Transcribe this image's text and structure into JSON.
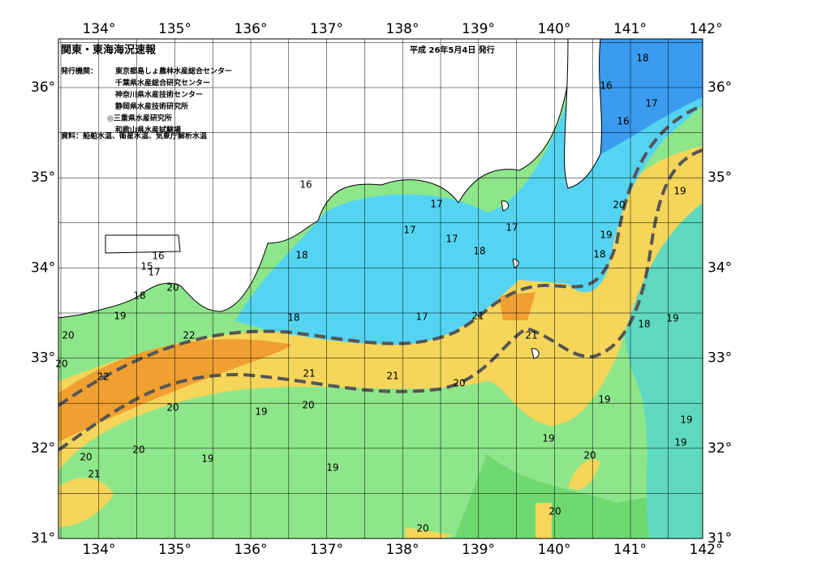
{
  "header": {
    "title": "関東・東海海況速報",
    "date": "平成 26年5月4日 発行"
  },
  "issuer_heading": "発行機関：",
  "issuers": [
    "東京都島しょ農林水産総合センター",
    "千葉県水産総合研究センター",
    "神奈川県水産技術センター",
    "静岡県水産技術研究所",
    "◎三重県水産研究所",
    "和歌山県水産試験場"
  ],
  "source": "資料：船舶水温、衛星水温、気象庁解析水温",
  "longitude_labels": [
    "134°",
    "135°",
    "136°",
    "137°",
    "138°",
    "139°",
    "140°",
    "141°",
    "142°"
  ],
  "latitude_labels": [
    "31°",
    "32°",
    "33°",
    "34°",
    "35°",
    "36°"
  ],
  "contour_labels": [
    "18",
    "16",
    "17",
    "16",
    "16",
    "17",
    "17",
    "17",
    "17",
    "18",
    "20",
    "19",
    "19",
    "18",
    "18",
    "16",
    "15",
    "17",
    "20",
    "18",
    "19",
    "18",
    "17",
    "21",
    "21",
    "18",
    "19",
    "20",
    "22",
    "20",
    "22",
    "21",
    "21",
    "20",
    "19",
    "20",
    "20",
    "19",
    "19",
    "19",
    "19",
    "20",
    "20",
    "20",
    "19",
    "21",
    "19",
    "20",
    "20"
  ]
}
